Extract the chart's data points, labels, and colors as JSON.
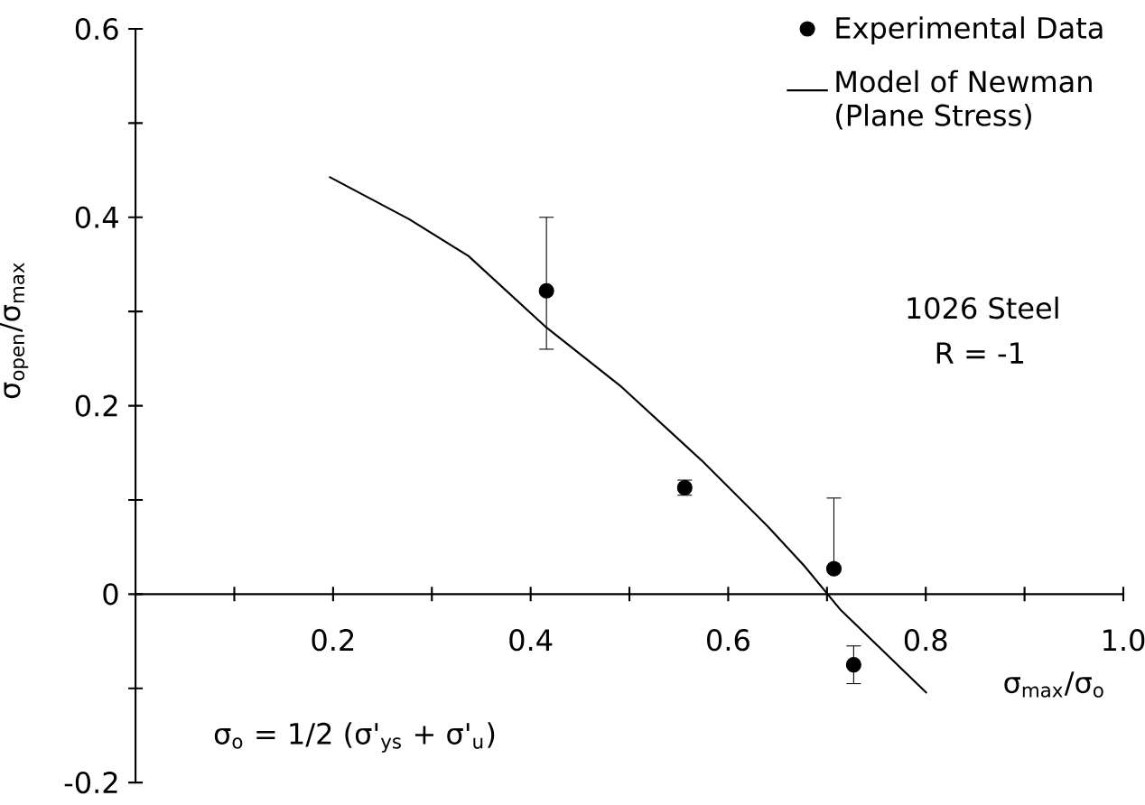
{
  "chart_data": {
    "type": "scatter",
    "xlabel": "σ$_{max}$/σ$_{o}$",
    "ylabel": "σ$_{open}$/σ$_{max}$",
    "annotations": [
      "1026 Steel",
      "R = -1",
      "σ$_{o}$ = 1/2 (σ'$_{ys}$ + σ'$_{u}$)"
    ],
    "xlim": [
      0,
      1.0
    ],
    "ylim": [
      -0.2,
      0.6
    ],
    "xticks": [
      {
        "value": 0.1,
        "label": null
      },
      0.2,
      {
        "value": 0.3,
        "label": null
      },
      0.4,
      {
        "value": 0.5,
        "label": null
      },
      0.6,
      {
        "value": 0.7,
        "label": null
      },
      0.8,
      {
        "value": 0.9,
        "label": null
      },
      {
        "value": 1.0,
        "label": "1.0"
      }
    ],
    "yticks": [
      -0.2,
      {
        "value": -0.1,
        "label": null
      },
      0,
      {
        "value": 0.1,
        "label": null
      },
      0.2,
      {
        "value": 0.3,
        "label": null
      },
      0.4,
      {
        "value": 0.5,
        "label": null
      },
      0.6
    ],
    "grid": false,
    "legend": "top right",
    "series": [
      {
        "name": "Experimental Data",
        "type": "scatter",
        "color": "#000000",
        "marker": "circle",
        "x": [
          0.416,
          0.556,
          0.707,
          0.727
        ],
        "values": [
          0.322,
          0.113,
          0.027,
          -0.075
        ],
        "errors": [
          [
            0.26,
            0.4
          ],
          0.008,
          [
            0.027,
            0.102
          ],
          0.02
        ]
      },
      {
        "name": "Model of Newman (Plane Stress)",
        "type": "line",
        "color": "#000000",
        "marker": "none",
        "line_style": "solid",
        "x": [
          0.196,
          0.277,
          0.337,
          0.416,
          0.492,
          0.573,
          0.64,
          0.677,
          0.714,
          0.801
        ],
        "values": [
          0.443,
          0.398,
          0.359,
          0.283,
          0.22,
          0.142,
          0.072,
          0.03,
          -0.017,
          -0.105
        ]
      }
    ]
  }
}
